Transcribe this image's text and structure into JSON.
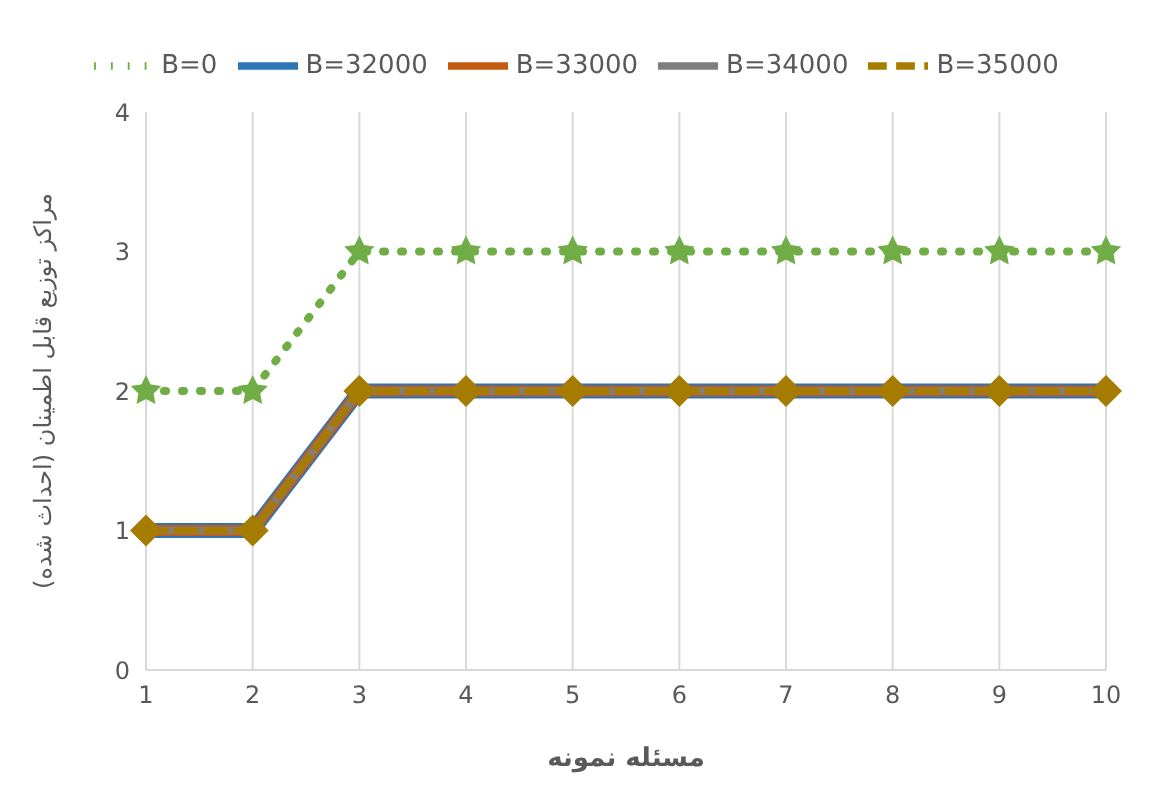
{
  "chart_data": {
    "type": "line",
    "xlabel": "مسئله نمونه",
    "ylabel": "مراکز توزیع قابل اطمینان (احداث شده)",
    "categories": [
      "1",
      "2",
      "3",
      "4",
      "5",
      "6",
      "7",
      "8",
      "9",
      "10"
    ],
    "series": [
      {
        "name": "B=0",
        "color": "#70ad47",
        "values": [
          2,
          2,
          3,
          3,
          3,
          3,
          3,
          3,
          3,
          3
        ],
        "marker": "star",
        "line_style": "dotted"
      },
      {
        "name": "B=32000",
        "color": "#2e75b6",
        "values": [
          1,
          1,
          2,
          2,
          2,
          2,
          2,
          2,
          2,
          2
        ],
        "marker": "cross",
        "line_style": "solid"
      },
      {
        "name": "B=33000",
        "color": "#c55a11",
        "values": [
          1,
          1,
          2,
          2,
          2,
          2,
          2,
          2,
          2,
          2
        ],
        "marker": "none",
        "line_style": "solid"
      },
      {
        "name": "B=34000",
        "color": "#7f7f7f",
        "values": [
          1,
          1,
          2,
          2,
          2,
          2,
          2,
          2,
          2,
          2
        ],
        "marker": "none",
        "line_style": "solid"
      },
      {
        "name": "B=35000",
        "color": "#a67c00",
        "values": [
          1,
          1,
          2,
          2,
          2,
          2,
          2,
          2,
          2,
          2
        ],
        "marker": "diamond",
        "line_style": "dashed"
      }
    ],
    "ylim": [
      0,
      4
    ],
    "yticks": [
      0,
      1,
      2,
      3,
      4
    ],
    "grid": "x",
    "legend": "top"
  }
}
